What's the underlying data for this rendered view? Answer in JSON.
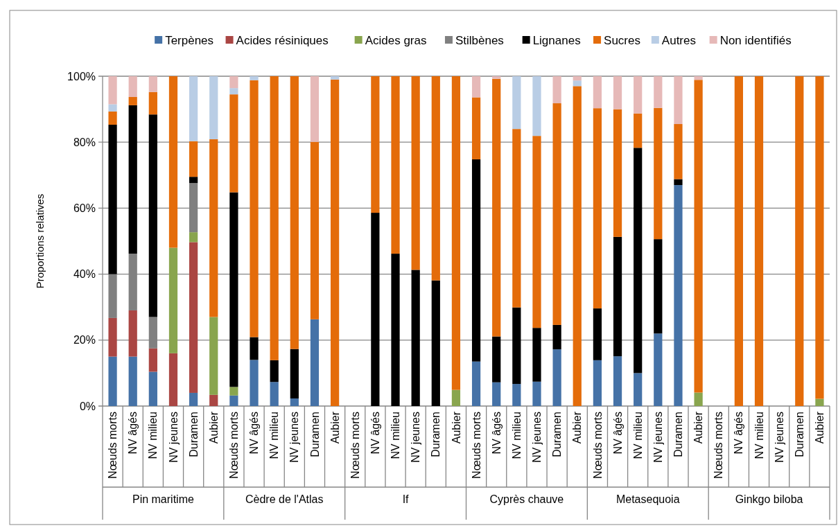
{
  "chart_data": {
    "type": "bar",
    "stacked": true,
    "ylabel": "Proportions relatives",
    "legend": "top",
    "grid": "y",
    "categories": [
      "Nœuds morts",
      "NV âgés",
      "NV milieu",
      "NV jeunes",
      "Duramen",
      "Aubier",
      "Nœuds morts",
      "NV âgés",
      "NV milieu",
      "NV jeunes",
      "Duramen",
      "Aubier",
      "Nœuds morts",
      "NV âgés",
      "NV milieu",
      "NV jeunes",
      "Duramen",
      "Aubier",
      "Nœuds morts",
      "NV âgés",
      "NV milieu",
      "NV jeunes",
      "Duramen",
      "Aubier",
      "Nœuds morts",
      "NV âgés",
      "NV milieu",
      "NV jeunes",
      "Duramen",
      "Aubier",
      "Nœuds morts",
      "NV âgés",
      "NV milieu",
      "NV jeunes",
      "Duramen",
      "Aubier"
    ],
    "annotations": [
      "Pin maritime",
      "Cèdre de l'Atlas",
      "If",
      "Cyprès chauve",
      "Metasequoia",
      "Ginkgo biloba"
    ],
    "ylim": [
      0,
      100
    ],
    "yticks": [
      {
        "value": 0,
        "label": "0%"
      },
      {
        "value": 20,
        "label": "20%"
      },
      {
        "value": 40,
        "label": "40%"
      },
      {
        "value": 60,
        "label": "60%"
      },
      {
        "value": 80,
        "label": "80%"
      },
      {
        "value": 100,
        "label": "100%"
      }
    ],
    "series": [
      {
        "name": "Terpènes",
        "color": "#4572a7",
        "values": [
          15,
          15,
          10.4,
          null,
          4,
          null,
          3.2,
          14,
          7.3,
          2.3,
          26.3,
          null,
          null,
          null,
          null,
          null,
          null,
          null,
          13.5,
          7.2,
          6.7,
          7.4,
          17.2,
          null,
          13.9,
          15.1,
          10,
          22,
          67,
          null,
          null,
          null,
          null,
          null,
          null,
          null
        ]
      },
      {
        "name": "Acides résiniques",
        "color": "#aa4643",
        "values": [
          11.7,
          14,
          7.1,
          16,
          45.7,
          3.4,
          null,
          null,
          null,
          null,
          null,
          null,
          null,
          null,
          null,
          null,
          null,
          null,
          null,
          null,
          null,
          null,
          null,
          null,
          null,
          null,
          null,
          null,
          null,
          null,
          null,
          null,
          null,
          null,
          null,
          null
        ]
      },
      {
        "name": "Acides gras",
        "color": "#89a54e",
        "values": [
          null,
          null,
          null,
          32,
          3,
          23.6,
          2.6,
          null,
          null,
          null,
          null,
          null,
          null,
          null,
          null,
          null,
          null,
          4.9,
          null,
          null,
          null,
          null,
          null,
          null,
          null,
          null,
          null,
          null,
          null,
          4.1,
          null,
          null,
          null,
          null,
          null,
          2.2
        ]
      },
      {
        "name": "Stilbènes",
        "color": "#808080",
        "values": [
          13.3,
          17.2,
          9.5,
          null,
          14.9,
          null,
          null,
          null,
          null,
          null,
          null,
          null,
          null,
          null,
          null,
          null,
          null,
          null,
          null,
          null,
          null,
          null,
          null,
          null,
          null,
          null,
          null,
          null,
          null,
          null,
          null,
          null,
          null,
          null,
          null,
          null
        ]
      },
      {
        "name": "Lignanes",
        "color": "#000000",
        "values": [
          45.3,
          45,
          61.4,
          null,
          1.9,
          null,
          59,
          6.9,
          6.6,
          15,
          null,
          null,
          null,
          58.6,
          46.2,
          41.3,
          38.1,
          null,
          61.3,
          13.9,
          23.2,
          16.3,
          7.4,
          null,
          15.7,
          36.2,
          68.3,
          28.6,
          1.8,
          null,
          null,
          null,
          null,
          null,
          null,
          null
        ]
      },
      {
        "name": "Sucres",
        "color": "#e46c0a",
        "values": [
          4,
          2.5,
          6.8,
          52,
          10.8,
          53.9,
          29.7,
          77.9,
          86.1,
          82.7,
          53.8,
          99,
          null,
          41.4,
          53.8,
          58.7,
          61.9,
          95.1,
          18.8,
          78.1,
          54.1,
          58.2,
          67.2,
          97,
          60.7,
          38.7,
          10.4,
          39.8,
          16.7,
          94.8,
          null,
          100,
          100,
          null,
          100,
          97.8
        ]
      },
      {
        "name": "Autres",
        "color": "#b9cde5",
        "values": [
          2.2,
          null,
          null,
          null,
          19.7,
          19.1,
          1.9,
          1.2,
          null,
          null,
          null,
          1,
          null,
          null,
          null,
          null,
          null,
          null,
          null,
          null,
          16,
          18.1,
          null,
          1.7,
          null,
          null,
          null,
          null,
          null,
          null,
          null,
          null,
          null,
          null,
          null,
          null
        ]
      },
      {
        "name": "Non identifiés",
        "color": "#e6b9b8",
        "values": [
          8.5,
          6.3,
          4.8,
          null,
          null,
          null,
          3.6,
          null,
          null,
          null,
          19.9,
          null,
          null,
          null,
          null,
          null,
          null,
          null,
          6.4,
          0.8,
          null,
          null,
          8.2,
          1.3,
          9.7,
          10,
          11.3,
          9.6,
          14.5,
          1.1,
          null,
          null,
          null,
          null,
          null,
          null
        ]
      }
    ]
  }
}
